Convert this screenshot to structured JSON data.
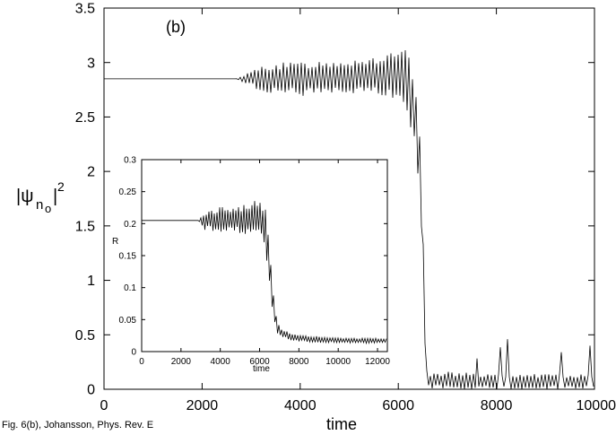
{
  "caption": "Fig. 6(b), Johansson, Phys. Rev. E",
  "chart_data": [
    {
      "type": "line",
      "panel_label": "(b)",
      "xlabel": "time",
      "ylabel_base": "|ψ",
      "ylabel_sub": "n",
      "ylabel_subsub": "o",
      "ylabel_sup": "2",
      "xlim": [
        0,
        10000
      ],
      "ylim": [
        0,
        3.5
      ],
      "xticks": [
        "0",
        "2000",
        "4000",
        "6000",
        "8000",
        "10000"
      ],
      "yticks": [
        "0",
        "0.5",
        "1",
        "1.5",
        "2",
        "2.5",
        "3",
        "3.5"
      ],
      "series": [
        {
          "x": [
            0,
            2700,
            3000,
            3300,
            4000,
            5000,
            5800,
            6150,
            6300,
            6400,
            6480,
            6540,
            6580,
            6620,
            7000,
            8000,
            9000,
            10000
          ],
          "y_center": [
            2.85,
            2.85,
            2.85,
            2.85,
            2.85,
            2.87,
            2.88,
            2.83,
            2.6,
            2.3,
            1.6,
            0.6,
            0.1,
            0.08,
            0.08,
            0.07,
            0.07,
            0.07
          ],
          "y_amplitude": [
            0.0,
            0.0,
            0.07,
            0.14,
            0.16,
            0.17,
            0.2,
            0.3,
            0.35,
            0.35,
            0.3,
            0.2,
            0.08,
            0.07,
            0.08,
            0.07,
            0.07,
            0.07
          ]
        }
      ]
    },
    {
      "type": "line",
      "inset": true,
      "xlabel": "time",
      "ylabel": "R",
      "xlim": [
        0,
        12500
      ],
      "ylim": [
        0,
        0.3
      ],
      "xticks": [
        "0",
        "2000",
        "4000",
        "6000",
        "8000",
        "10000",
        "12000"
      ],
      "yticks": [
        "0",
        "0.05",
        "0.1",
        "0.15",
        "0.2",
        "0.25",
        "0.3"
      ],
      "series": [
        {
          "x": [
            0,
            2900,
            3200,
            4000,
            5000,
            6000,
            6300,
            6500,
            6700,
            6900,
            7100,
            7500,
            8000,
            9000,
            10000,
            11000,
            12500
          ],
          "y_center": [
            0.205,
            0.205,
            0.205,
            0.206,
            0.207,
            0.208,
            0.19,
            0.14,
            0.07,
            0.035,
            0.03,
            0.024,
            0.021,
            0.019,
            0.018,
            0.017,
            0.017
          ],
          "y_amplitude": [
            0.0,
            0.0,
            0.015,
            0.02,
            0.022,
            0.03,
            0.035,
            0.03,
            0.02,
            0.01,
            0.008,
            0.006,
            0.005,
            0.005,
            0.004,
            0.004,
            0.004
          ]
        }
      ]
    }
  ]
}
